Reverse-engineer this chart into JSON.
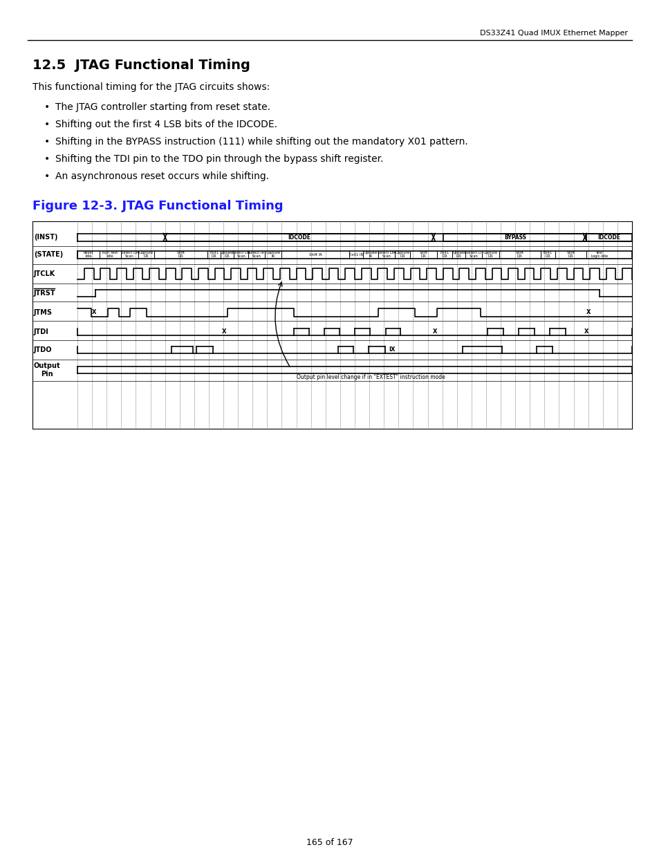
{
  "header_text": "DS33Z41 Quad IMUX Ethernet Mapper",
  "section_title": "12.5  JTAG Functional Timing",
  "intro_text": "This functional timing for the JTAG circuits shows:",
  "bullets": [
    "The JTAG controller starting from reset state.",
    "Shifting out the first 4 LSB bits of the IDCODE.",
    "Shifting in the BYPASS instruction (111) while shifting out the mandatory X01 pattern.",
    "Shifting the TDI pin to the TDO pin through the bypass shift register.",
    "An asynchronous reset occurs while shifting."
  ],
  "fig_caption": "Figure 12-3. JTAG Functional Timing",
  "footer_text": "165 of 167",
  "page_bg": "#ffffff",
  "text_color": "#000000"
}
